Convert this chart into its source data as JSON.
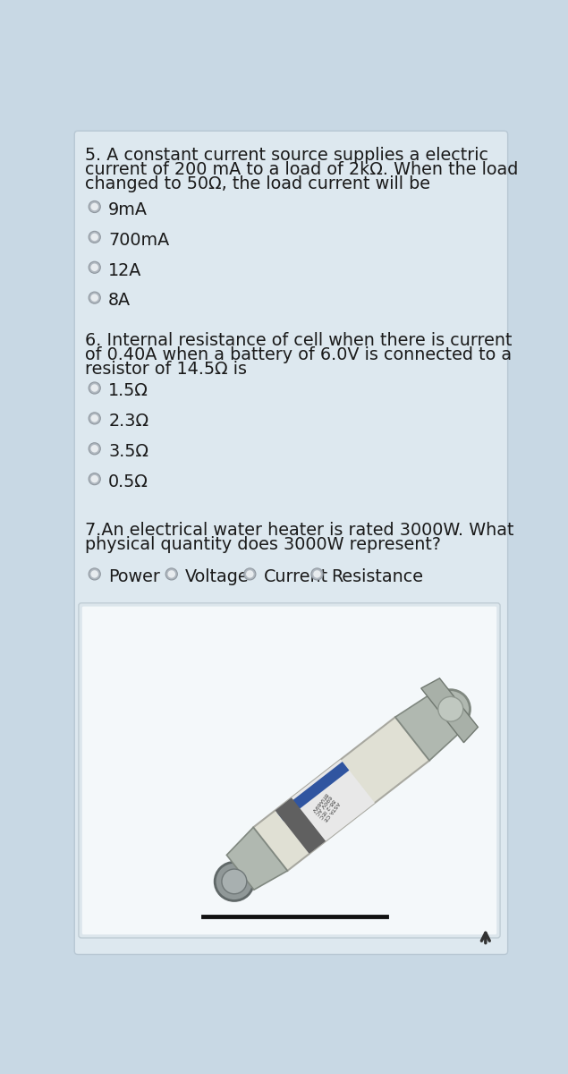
{
  "bg_outer": "#c8d8e4",
  "bg_card": "#dde8ef",
  "text_color": "#1a1a1a",
  "q5_text_lines": [
    "5. A constant current source supplies a electric",
    "current of 200 mA to a load of 2kΩ. When the load",
    "changed to 50Ω, the load current will be"
  ],
  "q5_options": [
    "9mA",
    "700mA",
    "12A",
    "8A"
  ],
  "q6_text_lines": [
    "6. Internal resistance of cell when there is current",
    "of 0.40A when a battery of 6.0V is connected to a",
    "resistor of 14.5Ω is"
  ],
  "q6_options": [
    "1.5Ω",
    "2.3Ω",
    "3.5Ω",
    "0.5Ω"
  ],
  "q7_text_lines": [
    "7.An electrical water heater is rated 3000W. What",
    "physical quantity does 3000W represent?"
  ],
  "q7_options": [
    "Power",
    "Voltage",
    "Current",
    "Resistance"
  ],
  "font_size_q": 13.8,
  "font_size_opt": 13.8,
  "radio_r": 8.5,
  "radio_inner_r": 5.5,
  "radio_outer_color": "#b0b8c0",
  "radio_inner_color": "#e8ecef",
  "img_box_color": "#e0e8ed",
  "img_box_edge": "#c0cdd5",
  "arrow_color": "#333333",
  "fuse_body_color": "#d8d8cc",
  "fuse_cap_color": "#909898",
  "fuse_label_color": "#dde8ef"
}
